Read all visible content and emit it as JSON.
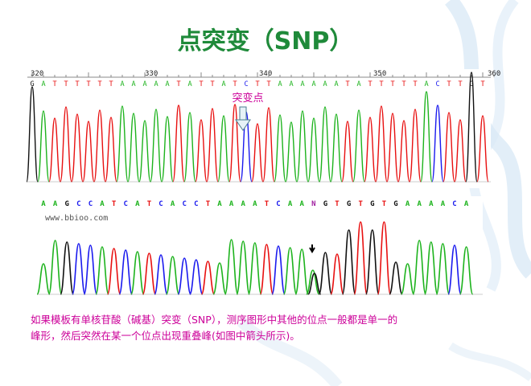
{
  "slide": {
    "title": "点突变（SNP）",
    "caption_line1": "如果模板有单核苷酸（碱基）突变（SNP），测序图形中其他的位点一般都是单一的",
    "caption_line2": "峰形，然后突然在某一个位点出现重叠峰(如图中箭头所示)。"
  },
  "trace_top": {
    "ruler_ticks": [
      "320",
      "330",
      "340",
      "350",
      "360"
    ],
    "sequence": "GATTTTTTAAAAATATTATCTTAAAAAATATTTTTACTTGT",
    "mutation_label": "突变点"
  },
  "trace_bottom": {
    "sequence": "AAGCCATCATCACCTAAAATCAANGTGTGTGAAAACA",
    "watermark": "www.bbioo.com"
  },
  "colors": {
    "A": "#1db31d",
    "C": "#1a1aee",
    "G": "#111111",
    "T": "#e81010",
    "N": "#a020a0",
    "title": "#1f8a3a",
    "caption": "#cc0099"
  }
}
